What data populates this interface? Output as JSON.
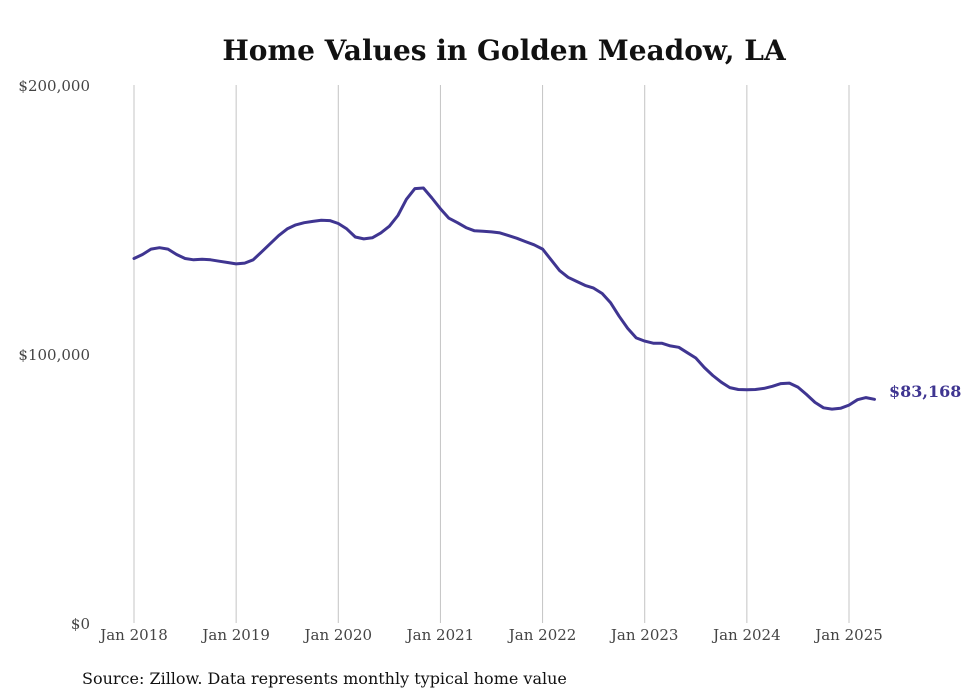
{
  "chart_data": {
    "type": "line",
    "title": "Home Values in Golden Meadow, LA",
    "xlabel": "",
    "ylabel": "",
    "ylim": [
      0,
      200000
    ],
    "y_ticks": [
      {
        "value": 0,
        "label": "$0"
      },
      {
        "value": 100000,
        "label": "$100,000"
      },
      {
        "value": 200000,
        "label": "$200,000"
      }
    ],
    "x_ticks": [
      {
        "value": "2018-01",
        "label": "Jan 2018"
      },
      {
        "value": "2019-01",
        "label": "Jan 2019"
      },
      {
        "value": "2020-01",
        "label": "Jan 2020"
      },
      {
        "value": "2021-01",
        "label": "Jan 2021"
      },
      {
        "value": "2022-01",
        "label": "Jan 2022"
      },
      {
        "value": "2023-01",
        "label": "Jan 2023"
      },
      {
        "value": "2024-01",
        "label": "Jan 2024"
      },
      {
        "value": "2025-01",
        "label": "Jan 2025"
      }
    ],
    "grid": "vertical",
    "series_color": "#3f3591",
    "end_label": "$83,168",
    "series": [
      {
        "x": [
          "2018-01",
          "2018-02",
          "2018-03",
          "2018-04",
          "2018-05",
          "2018-06",
          "2018-07",
          "2018-08",
          "2018-09",
          "2018-10",
          "2018-11",
          "2018-12",
          "2019-01",
          "2019-02",
          "2019-03",
          "2019-04",
          "2019-05",
          "2019-06",
          "2019-07",
          "2019-08",
          "2019-09",
          "2019-10",
          "2019-11",
          "2019-12",
          "2020-01",
          "2020-02",
          "2020-03",
          "2020-04",
          "2020-05",
          "2020-06",
          "2020-07",
          "2020-08",
          "2020-09",
          "2020-10",
          "2020-11",
          "2020-12",
          "2021-01",
          "2021-02",
          "2021-03",
          "2021-04",
          "2021-05",
          "2021-06",
          "2021-07",
          "2021-08",
          "2021-09",
          "2021-10",
          "2021-11",
          "2021-12",
          "2022-01",
          "2022-02",
          "2022-03",
          "2022-04",
          "2022-05",
          "2022-06",
          "2022-07",
          "2022-08",
          "2022-09",
          "2022-10",
          "2022-11",
          "2022-12",
          "2023-01",
          "2023-02",
          "2023-03",
          "2023-04",
          "2023-05",
          "2023-06",
          "2023-07",
          "2023-08",
          "2023-09",
          "2023-10",
          "2023-11",
          "2023-12",
          "2024-01",
          "2024-02",
          "2024-03",
          "2024-04",
          "2024-05",
          "2024-06",
          "2024-07",
          "2024-08",
          "2024-09",
          "2024-10",
          "2024-11",
          "2024-12",
          "2025-01",
          "2025-02",
          "2025-03",
          "2025-04"
        ],
        "values": [
          135500,
          137000,
          139000,
          139500,
          139000,
          137000,
          135500,
          135000,
          135200,
          135000,
          134500,
          134000,
          133500,
          133800,
          135000,
          138000,
          141000,
          144000,
          146500,
          148000,
          148800,
          149300,
          149700,
          149600,
          148500,
          146500,
          143500,
          142800,
          143200,
          145000,
          147500,
          151500,
          157500,
          161500,
          161700,
          158000,
          154000,
          150500,
          148800,
          147000,
          145800,
          145600,
          145400,
          145000,
          144000,
          143000,
          141800,
          140600,
          139000,
          135000,
          131000,
          128500,
          127000,
          125500,
          124500,
          122500,
          119000,
          114000,
          109500,
          106000,
          104800,
          104000,
          104000,
          103000,
          102500,
          100500,
          98500,
          95000,
          92000,
          89500,
          87500,
          86800,
          86700,
          86800,
          87200,
          88000,
          89000,
          89200,
          87700,
          85000,
          82000,
          80000,
          79500,
          79800,
          81000,
          83000,
          83800,
          83168
        ]
      }
    ]
  },
  "source_note": "Source: Zillow. Data represents monthly typical home value"
}
